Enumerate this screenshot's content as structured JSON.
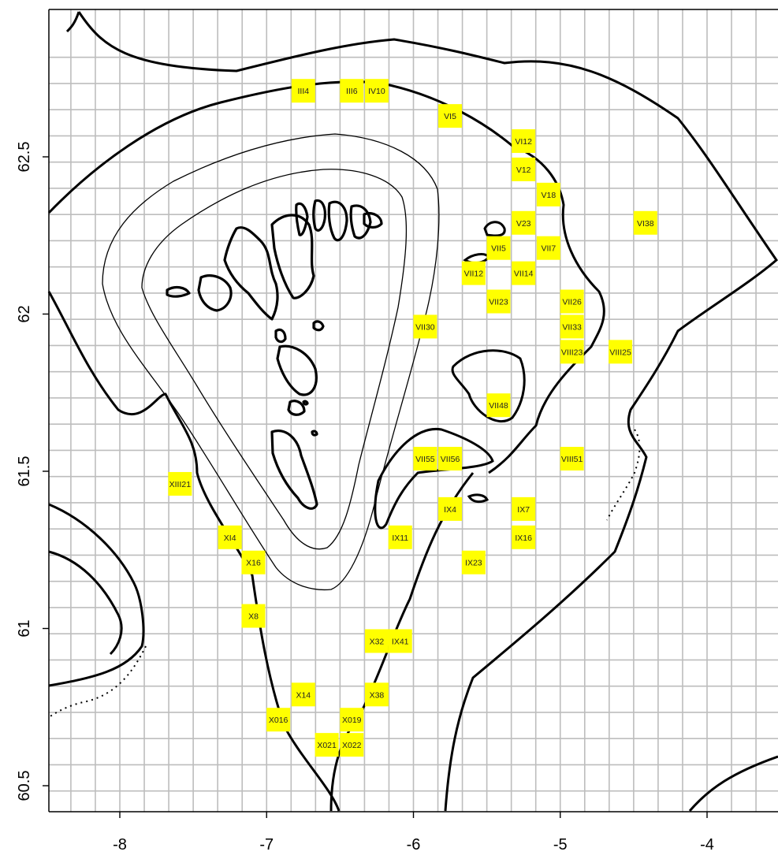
{
  "map": {
    "lon_range": [
      -8.5,
      -3.5
    ],
    "lat_range": [
      60.4,
      62.8
    ],
    "grid": {
      "lon_step": 0.1666667,
      "lat_step": 0.0833333,
      "color": "#bdbdbd"
    },
    "x_ticks": [
      -8,
      -7,
      -6,
      -5,
      -4
    ],
    "y_ticks": [
      60.5,
      61,
      61.5,
      62,
      62.5
    ],
    "x_tick_labels": [
      "-8",
      "-7",
      "-6",
      "-5",
      "-4"
    ],
    "y_tick_labels": [
      "60.5",
      "61",
      "61.5",
      "62",
      "62.5"
    ],
    "cell_color": "#ffff00",
    "cells": [
      {
        "label": "III4",
        "lon": -6.75,
        "lat": 62.71
      },
      {
        "label": "III6",
        "lon": -6.42,
        "lat": 62.71
      },
      {
        "label": "IV10",
        "lon": -6.25,
        "lat": 62.71
      },
      {
        "label": "VI5",
        "lon": -5.75,
        "lat": 62.63
      },
      {
        "label": "VI12",
        "lon": -5.25,
        "lat": 62.55
      },
      {
        "label": "V12",
        "lon": -5.25,
        "lat": 62.46
      },
      {
        "label": "V18",
        "lon": -5.08,
        "lat": 62.38
      },
      {
        "label": "V23",
        "lon": -5.25,
        "lat": 62.29
      },
      {
        "label": "VI38",
        "lon": -4.42,
        "lat": 62.29
      },
      {
        "label": "VII5",
        "lon": -5.42,
        "lat": 62.21
      },
      {
        "label": "VII7",
        "lon": -5.08,
        "lat": 62.21
      },
      {
        "label": "VII12",
        "lon": -5.59,
        "lat": 62.13
      },
      {
        "label": "VII14",
        "lon": -5.25,
        "lat": 62.13
      },
      {
        "label": "VII23",
        "lon": -5.42,
        "lat": 62.04
      },
      {
        "label": "VII26",
        "lon": -4.92,
        "lat": 62.04
      },
      {
        "label": "VII33",
        "lon": -4.92,
        "lat": 61.96
      },
      {
        "label": "VII30",
        "lon": -5.92,
        "lat": 61.96
      },
      {
        "label": "VIII23",
        "lon": -4.92,
        "lat": 61.88
      },
      {
        "label": "VIII25",
        "lon": -4.59,
        "lat": 61.88
      },
      {
        "label": "VII48",
        "lon": -5.42,
        "lat": 61.71
      },
      {
        "label": "VII55",
        "lon": -5.92,
        "lat": 61.54
      },
      {
        "label": "VII56",
        "lon": -5.75,
        "lat": 61.54
      },
      {
        "label": "VIII51",
        "lon": -4.92,
        "lat": 61.54
      },
      {
        "label": "XIII21",
        "lon": -7.59,
        "lat": 61.46
      },
      {
        "label": "IX4",
        "lon": -5.75,
        "lat": 61.38
      },
      {
        "label": "IX7",
        "lon": -5.25,
        "lat": 61.38
      },
      {
        "label": "XI4",
        "lon": -7.25,
        "lat": 61.29
      },
      {
        "label": "IX11",
        "lon": -6.09,
        "lat": 61.29
      },
      {
        "label": "IX16",
        "lon": -5.25,
        "lat": 61.29
      },
      {
        "label": "X16",
        "lon": -7.09,
        "lat": 61.21
      },
      {
        "label": "IX23",
        "lon": -5.59,
        "lat": 61.21
      },
      {
        "label": "X8",
        "lon": -7.09,
        "lat": 61.04
      },
      {
        "label": "X32",
        "lon": -6.25,
        "lat": 60.96
      },
      {
        "label": "IX41",
        "lon": -6.09,
        "lat": 60.96
      },
      {
        "label": "X14",
        "lon": -6.75,
        "lat": 60.79
      },
      {
        "label": "X38",
        "lon": -6.25,
        "lat": 60.79
      },
      {
        "label": "X016",
        "lon": -6.92,
        "lat": 60.71
      },
      {
        "label": "X019",
        "lon": -6.42,
        "lat": 60.71
      },
      {
        "label": "X021",
        "lon": -6.59,
        "lat": 60.63
      },
      {
        "label": "X022",
        "lon": -6.42,
        "lat": 60.63
      }
    ]
  }
}
